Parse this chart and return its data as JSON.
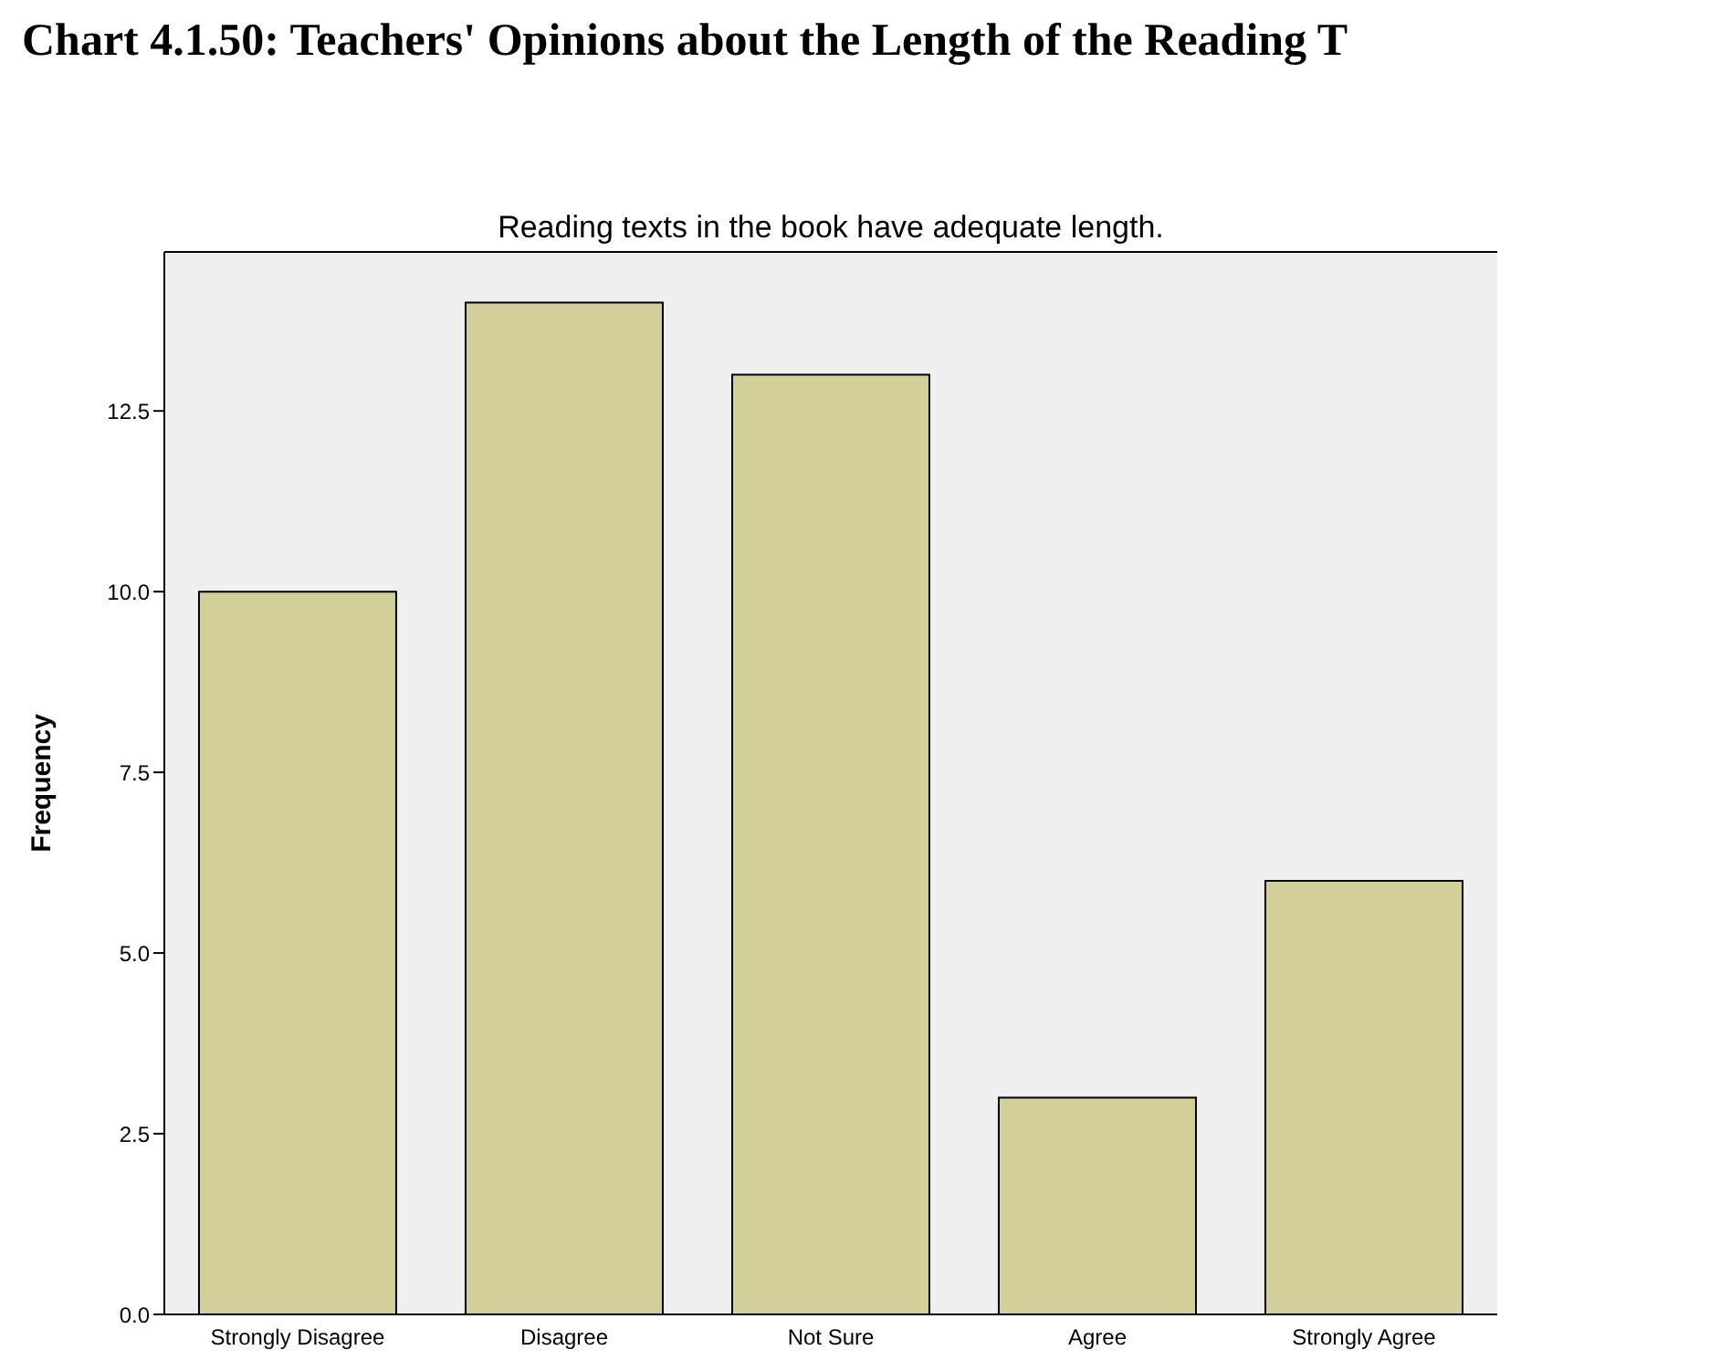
{
  "chart_data": {
    "type": "bar",
    "title": "Chart 4.1.50: Teachers' Opinions about the Length of the Reading T",
    "subtitle": "Reading texts in the book have adequate length.",
    "ylabel": "Frequency",
    "categories": [
      "Strongly Disagree",
      "Disagree",
      "Not Sure",
      "Agree",
      "Strongly Agree"
    ],
    "values": [
      10,
      14,
      13,
      3,
      6
    ],
    "color": "#d3cf98",
    "ylim": [
      0,
      14.7
    ],
    "yticks": [
      {
        "value": 0,
        "label": "0.0"
      },
      {
        "value": 2.5,
        "label": "2.5"
      },
      {
        "value": 5,
        "label": "5.0"
      },
      {
        "value": 7.5,
        "label": "7.5"
      },
      {
        "value": 10,
        "label": "10.0"
      },
      {
        "value": 12.5,
        "label": "12.5"
      }
    ],
    "grid": false,
    "legend": false
  }
}
